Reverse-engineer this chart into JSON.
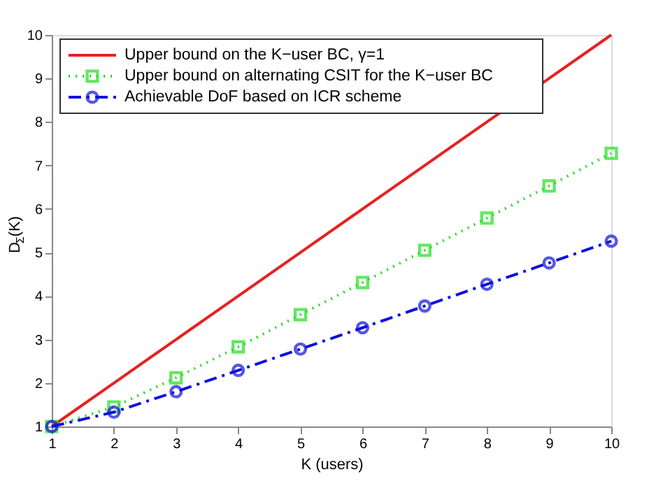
{
  "chart_data": {
    "type": "line",
    "xlabel": "K (users)",
    "ylabel": "D$_{Σ}$(K)",
    "x": [
      1,
      2,
      3,
      4,
      5,
      6,
      7,
      8,
      9,
      10
    ],
    "series": [
      {
        "name": "Upper bound on the K−user BC, γ=1",
        "color": "#e8201f",
        "marker": "none",
        "line_style": "solid",
        "values": [
          1,
          2,
          3,
          4,
          5,
          6,
          7,
          8,
          9,
          10
        ]
      },
      {
        "name": "Upper bound on alternating CSIT for the K−user BC",
        "color": "#22dd22",
        "marker": "square",
        "line_style": "dotted",
        "values": [
          1,
          1.45,
          2.12,
          2.83,
          3.57,
          4.31,
          5.05,
          5.79,
          6.53,
          7.28
        ]
      },
      {
        "name": "Achievable DoF based on ICR scheme",
        "color": "#1010dd",
        "marker": "circle",
        "line_style": "dashed",
        "values": [
          1,
          1.33,
          1.8,
          2.29,
          2.78,
          3.27,
          3.77,
          4.27,
          4.76,
          5.26
        ]
      }
    ],
    "xlim": [
      1,
      10
    ],
    "ylim": [
      1,
      10
    ],
    "xticks": [
      1,
      2,
      3,
      4,
      5,
      6,
      7,
      8,
      9,
      10
    ],
    "yticks": [
      1,
      2,
      3,
      4,
      5,
      6,
      7,
      8,
      9,
      10
    ],
    "grid": false,
    "legend": "top left"
  }
}
